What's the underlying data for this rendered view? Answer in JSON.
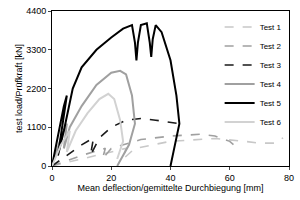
{
  "chart_data": {
    "type": "line",
    "x_label": "Mean deflection/gemittelte Durchbiegung [mm]",
    "y_label": "test load/Prüfkraft [kN]",
    "xlim": [
      0,
      80
    ],
    "xticks": [
      0,
      20,
      40,
      60,
      80
    ],
    "ylim": [
      0,
      4400
    ],
    "yticks": [
      0,
      1100,
      2200,
      3300,
      4400
    ],
    "grid": false,
    "legend": "top right",
    "series": [
      {
        "name": "Test 1",
        "color": "#c8c8c8",
        "line_style": "dash",
        "x": [
          0,
          15,
          25,
          24,
          28,
          40,
          55,
          65,
          70,
          75,
          78
        ],
        "values": [
          0,
          300,
          500,
          200,
          500,
          700,
          780,
          700,
          650,
          650,
          800
        ]
      },
      {
        "name": "Test 2",
        "color": "#a0a0a0",
        "line_style": "dash",
        "x": [
          0,
          10,
          18,
          17,
          20,
          30,
          40,
          50,
          55,
          60,
          62
        ],
        "values": [
          0,
          300,
          500,
          200,
          500,
          750,
          850,
          900,
          850,
          700,
          550
        ]
      },
      {
        "name": "Test 3",
        "color": "#1a1a1a",
        "line_style": "dash",
        "x": [
          0,
          5,
          10,
          14,
          13,
          16,
          20,
          25,
          30,
          35,
          40,
          43,
          45
        ],
        "values": [
          0,
          300,
          600,
          800,
          300,
          800,
          1100,
          1300,
          1350,
          1300,
          1250,
          1200,
          1250
        ]
      },
      {
        "name": "Test 4",
        "color": "#a0a0a0",
        "line_style": "solid",
        "x": [
          0,
          3,
          5,
          4,
          6,
          10,
          15,
          20,
          23,
          25,
          27,
          28,
          26,
          22
        ],
        "values": [
          0,
          800,
          1200,
          500,
          1100,
          1700,
          2300,
          2650,
          2700,
          2600,
          2000,
          1200,
          600,
          0
        ]
      },
      {
        "name": "Test 5",
        "color": "#000000",
        "line_style": "solid",
        "x": [
          0,
          2,
          4,
          5,
          3,
          2,
          4,
          7,
          10,
          15,
          20,
          24,
          27,
          28,
          28.5,
          29,
          30,
          32,
          33,
          33.5,
          34,
          35,
          37,
          40,
          42,
          43,
          41,
          40
        ],
        "values": [
          0,
          900,
          1700,
          2000,
          900,
          300,
          1000,
          2200,
          2800,
          3300,
          3650,
          3900,
          4000,
          3500,
          3000,
          3500,
          4000,
          4050,
          3500,
          3100,
          3600,
          4000,
          3800,
          3000,
          2000,
          1200,
          400,
          0
        ]
      },
      {
        "name": "Test 6",
        "color": "#d2d2d2",
        "line_style": "solid",
        "x": [
          0,
          3,
          6,
          5,
          8,
          12,
          16,
          19,
          21,
          23,
          24,
          22
        ],
        "values": [
          0,
          600,
          1000,
          400,
          1000,
          1500,
          1900,
          2050,
          1900,
          1300,
          700,
          200
        ]
      }
    ]
  }
}
